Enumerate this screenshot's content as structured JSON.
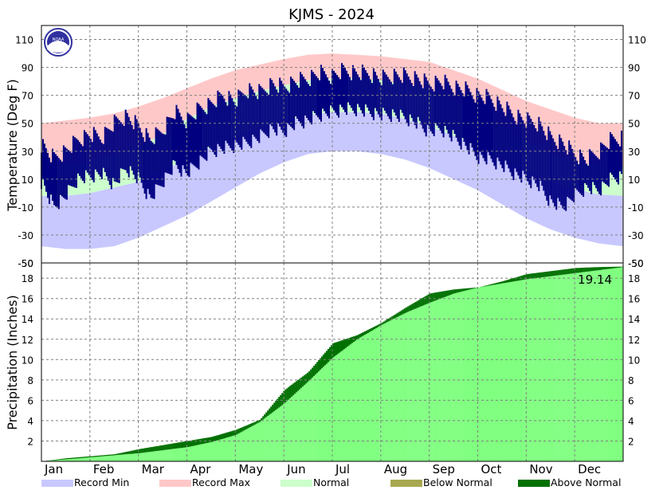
{
  "chart_data": [
    {
      "type": "area",
      "title": "KJMS - 2024",
      "ylabel": "Temperature (Deg F)",
      "xlabel": "",
      "ylim": [
        -50,
        120
      ],
      "yticks": [
        110,
        90,
        70,
        50,
        30,
        10,
        -10,
        -30,
        -50
      ],
      "y_tick_labels_right": true,
      "grid": true,
      "months": [
        "Jan",
        "Feb",
        "Mar",
        "Apr",
        "May",
        "Jun",
        "Jul",
        "Aug",
        "Sep",
        "Oct",
        "Nov",
        "Dec"
      ],
      "series": [
        {
          "name": "Record Max",
          "color": "#ffc8c8",
          "x_month": [
            1,
            1.5,
            2,
            2.5,
            3,
            3.5,
            4,
            4.5,
            5,
            5.5,
            6,
            6.5,
            7,
            7.5,
            8,
            8.5,
            9,
            9.5,
            10,
            10.5,
            11,
            11.5,
            12,
            12.5,
            13
          ],
          "values": [
            50,
            52,
            54,
            57,
            62,
            68,
            75,
            82,
            88,
            92,
            96,
            99,
            100,
            99,
            98,
            96,
            94,
            88,
            82,
            74,
            66,
            60,
            54,
            50,
            50
          ]
        },
        {
          "name": "Normal",
          "color": "#ccffcc",
          "normal_high": [
            19,
            20,
            23,
            28,
            33,
            42,
            53,
            62,
            68,
            73,
            77,
            81,
            82,
            82,
            81,
            78,
            74,
            66,
            58,
            48,
            38,
            28,
            22,
            19,
            19
          ],
          "normal_low": [
            -2,
            -2,
            0,
            4,
            8,
            16,
            24,
            33,
            41,
            47,
            52,
            56,
            58,
            58,
            57,
            53,
            48,
            41,
            33,
            25,
            16,
            8,
            3,
            -1,
            -2
          ],
          "x_month": [
            1,
            1.5,
            2,
            2.5,
            3,
            3.5,
            4,
            4.5,
            5,
            5.5,
            6,
            6.5,
            7,
            7.5,
            8,
            8.5,
            9,
            9.5,
            10,
            10.5,
            11,
            11.5,
            12,
            12.5,
            13
          ]
        },
        {
          "name": "Record Min",
          "color": "#c8c8ff",
          "x_month": [
            1,
            1.5,
            2,
            2.5,
            3,
            3.5,
            4,
            4.5,
            5,
            5.5,
            6,
            6.5,
            7,
            7.5,
            8,
            8.5,
            9,
            9.5,
            10,
            10.5,
            11,
            11.5,
            12,
            12.5,
            13
          ],
          "values": [
            -38,
            -40,
            -40,
            -38,
            -32,
            -24,
            -16,
            -6,
            4,
            14,
            22,
            28,
            30,
            30,
            28,
            24,
            18,
            10,
            2,
            -8,
            -18,
            -26,
            -32,
            -36,
            -38
          ]
        },
        {
          "name": "Observed",
          "color": "#000080",
          "x_month": [
            1,
            1.25,
            1.5,
            1.75,
            2,
            2.25,
            2.5,
            2.75,
            3,
            3.25,
            3.5,
            3.75,
            4,
            4.25,
            4.5,
            4.75,
            5,
            5.25,
            5.5,
            5.75,
            6,
            6.25,
            6.5,
            6.75,
            7,
            7.25,
            7.5,
            7.75,
            8,
            8.25,
            8.5,
            8.75,
            9,
            9.25,
            9.5,
            9.75,
            10,
            10.25,
            10.5,
            10.75,
            11,
            11.25,
            11.5,
            11.75,
            12,
            12.25,
            12.5,
            12.75,
            13
          ],
          "high": [
            35,
            25,
            30,
            38,
            42,
            40,
            50,
            55,
            48,
            38,
            45,
            58,
            52,
            60,
            64,
            70,
            66,
            74,
            72,
            78,
            76,
            80,
            82,
            86,
            84,
            88,
            86,
            86,
            82,
            84,
            84,
            82,
            78,
            80,
            76,
            74,
            70,
            68,
            62,
            56,
            52,
            50,
            40,
            36,
            28,
            24,
            30,
            38,
            40
          ],
          "low": [
            8,
            -10,
            -2,
            10,
            12,
            14,
            6,
            18,
            10,
            -4,
            8,
            20,
            14,
            22,
            30,
            32,
            34,
            36,
            40,
            46,
            44,
            50,
            52,
            56,
            58,
            60,
            60,
            58,
            56,
            56,
            54,
            50,
            44,
            46,
            40,
            34,
            26,
            24,
            20,
            14,
            10,
            6,
            -6,
            -10,
            -2,
            4,
            2,
            10,
            12
          ]
        }
      ]
    },
    {
      "type": "area",
      "ylabel": "Precipitation (Inches)",
      "xlabel": "",
      "ylim": [
        0,
        19.5
      ],
      "yticks": [
        18,
        16,
        14,
        12,
        10,
        8,
        6,
        4,
        2
      ],
      "y_tick_labels_right": true,
      "grid": true,
      "months": [
        "Jan",
        "Feb",
        "Mar",
        "Apr",
        "May",
        "Jun",
        "Jul",
        "Aug",
        "Sep",
        "Oct",
        "Nov",
        "Dec"
      ],
      "total_label": "19.14",
      "series": [
        {
          "name": "Normal",
          "color": "#80ff80",
          "x_month": [
            1,
            1.5,
            2,
            2.5,
            3,
            3.5,
            4,
            4.5,
            5,
            5.5,
            6,
            6.5,
            7,
            7.5,
            8,
            8.5,
            9,
            9.5,
            10,
            10.5,
            11,
            11.5,
            12,
            12.5,
            13
          ],
          "values": [
            0,
            0.2,
            0.4,
            0.6,
            0.8,
            1.1,
            1.4,
            1.9,
            2.6,
            3.9,
            5.7,
            7.9,
            10.2,
            12.0,
            13.4,
            14.6,
            15.6,
            16.5,
            17.1,
            17.5,
            17.9,
            18.2,
            18.5,
            18.8,
            19.1
          ]
        },
        {
          "name": "Observed",
          "x_month": [
            1,
            1.5,
            2,
            2.5,
            3,
            3.5,
            4,
            4.5,
            5,
            5.5,
            6,
            6.5,
            7,
            7.5,
            8,
            8.5,
            9,
            9.5,
            10,
            10.5,
            11,
            11.5,
            12,
            12.5,
            13
          ],
          "values": [
            0,
            0.3,
            0.5,
            0.7,
            1.2,
            1.6,
            2.0,
            2.4,
            3.1,
            4.1,
            7.0,
            8.8,
            11.6,
            12.4,
            13.6,
            15.1,
            16.5,
            16.9,
            17.1,
            17.7,
            18.4,
            18.7,
            19.0,
            19.1,
            19.14
          ]
        },
        {
          "name": "Below Normal",
          "color": "#a8a850"
        },
        {
          "name": "Above Normal",
          "color": "#007000"
        }
      ]
    }
  ],
  "legend": [
    {
      "label": "Record Min",
      "color": "#c8c8ff"
    },
    {
      "label": "Record Max",
      "color": "#ffc8c8"
    },
    {
      "label": "Normal",
      "color": "#ccffcc"
    },
    {
      "label": "Below Normal",
      "color": "#a8a850"
    },
    {
      "label": "Above Normal",
      "color": "#007000"
    }
  ],
  "logo": {
    "text": "NOAA",
    "color": "#3030a0"
  }
}
